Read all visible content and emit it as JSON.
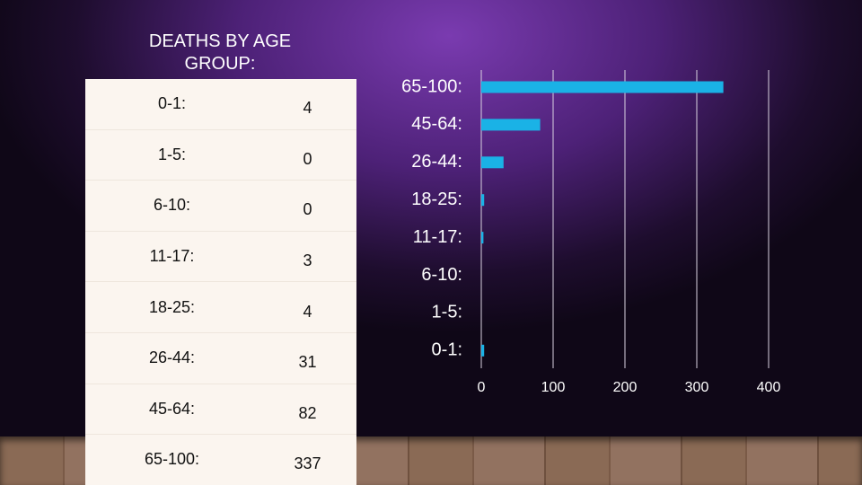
{
  "title": "DEATHS BY AGE GROUP:",
  "table": {
    "rows": [
      [
        "0-1:",
        "4"
      ],
      [
        "1-5:",
        "0"
      ],
      [
        "6-10:",
        "0"
      ],
      [
        "11-17:",
        "3"
      ],
      [
        "18-25:",
        "4"
      ],
      [
        "26-44:",
        "31"
      ],
      [
        "45-64:",
        "82"
      ],
      [
        "65-100:",
        "337"
      ]
    ]
  },
  "chart_data": {
    "type": "hbar",
    "categories": [
      "65-100:",
      "45-64:",
      "26-44:",
      "18-25:",
      "11-17:",
      "6-10:",
      "1-5:",
      "0-1:"
    ],
    "values": [
      337,
      82,
      31,
      4,
      3,
      0,
      0,
      4
    ],
    "color": "#1ab2e6",
    "xlim": [
      0,
      400
    ],
    "xticks": [
      0,
      100,
      200,
      300,
      400
    ],
    "grid": true
  }
}
